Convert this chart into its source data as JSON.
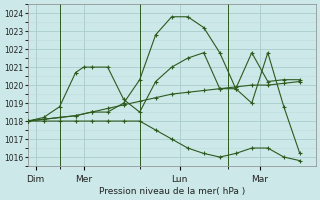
{
  "background_color": "#cce8e8",
  "grid_major_color": "#aacccc",
  "grid_minor_color": "#bbdddd",
  "line_color": "#2d5a1e",
  "ylabel": "Pression niveau de la mer( hPa )",
  "ylim": [
    1015.5,
    1024.5
  ],
  "yticks": [
    1016,
    1017,
    1018,
    1019,
    1020,
    1021,
    1022,
    1023,
    1024
  ],
  "day_labels": [
    "Dim",
    "Mer",
    "Lun",
    "Mar"
  ],
  "day_positions": [
    0.5,
    3.5,
    9.5,
    14.5
  ],
  "vline_positions": [
    2.0,
    7.0,
    12.5
  ],
  "xlim": [
    0,
    18
  ],
  "series": [
    {
      "x": [
        0,
        1,
        2,
        3,
        4,
        5,
        6,
        7,
        8,
        9,
        10,
        11,
        12,
        13,
        14,
        15,
        16,
        17
      ],
      "y": [
        1018.0,
        1018.1,
        1018.2,
        1018.3,
        1018.5,
        1018.7,
        1018.9,
        1019.1,
        1019.3,
        1019.5,
        1019.6,
        1019.7,
        1019.8,
        1019.9,
        1020.0,
        1020.0,
        1020.1,
        1020.2
      ]
    },
    {
      "x": [
        0,
        1,
        2,
        3,
        3.5,
        4,
        5,
        6,
        7,
        8,
        9,
        10,
        11,
        12,
        13,
        14,
        15,
        16,
        17
      ],
      "y": [
        1018.0,
        1018.2,
        1018.8,
        1020.7,
        1021.0,
        1021.0,
        1021.0,
        1019.2,
        1018.5,
        1020.2,
        1021.0,
        1021.5,
        1021.8,
        1019.8,
        1019.8,
        1021.8,
        1020.2,
        1020.3,
        1020.3
      ]
    },
    {
      "x": [
        0,
        1,
        2,
        3,
        4,
        5,
        6,
        7,
        8,
        9,
        10,
        11,
        12,
        13,
        14,
        15,
        16,
        17
      ],
      "y": [
        1018.0,
        1018.1,
        1018.2,
        1018.3,
        1018.5,
        1018.5,
        1019.0,
        1020.3,
        1022.8,
        1023.8,
        1023.8,
        1023.2,
        1021.8,
        1019.8,
        1019.0,
        1021.8,
        1018.8,
        1016.2
      ]
    },
    {
      "x": [
        0,
        1,
        2,
        3,
        4,
        5,
        6,
        7,
        8,
        9,
        10,
        11,
        12,
        13,
        14,
        15,
        16,
        17
      ],
      "y": [
        1018.0,
        1018.0,
        1018.0,
        1018.0,
        1018.0,
        1018.0,
        1018.0,
        1018.0,
        1017.5,
        1017.0,
        1016.5,
        1016.2,
        1016.0,
        1016.2,
        1016.5,
        1016.5,
        1016.0,
        1015.8
      ]
    }
  ],
  "figsize": [
    3.2,
    2.0
  ],
  "dpi": 100
}
